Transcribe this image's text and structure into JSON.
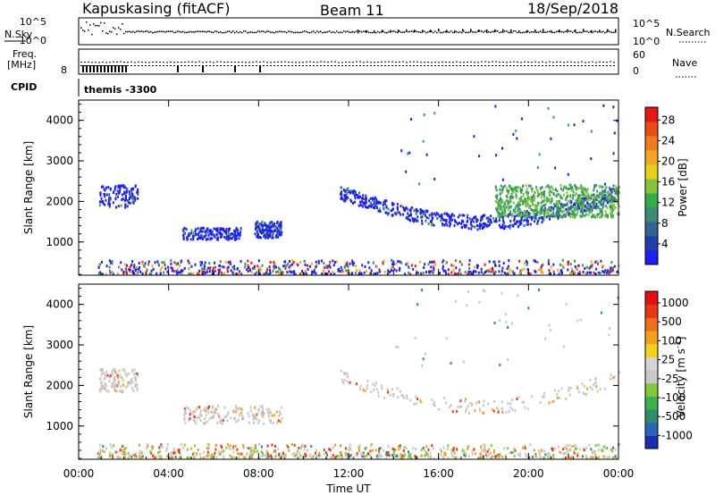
{
  "header": {
    "station": "Kapuskasing (fitACF)",
    "beam": "Beam 11",
    "date": "18/Sep/2018"
  },
  "top_panels": {
    "nsky_label": "N.Sky",
    "nsearch_label": "N.Search",
    "noise_ticks_left": [
      "10^5",
      "10^0"
    ],
    "noise_ticks_right": [
      "10^5",
      "10^0"
    ],
    "freq_label_1": "Freq.",
    "freq_label_2": "[MHz]",
    "freq_ticks_left": [
      "8"
    ],
    "nave_label": "Nave",
    "nave_ticks_right": [
      "60",
      "0"
    ],
    "cpid_label": "CPID",
    "cpid_text": "themis -3300"
  },
  "chart_data": [
    {
      "type": "heatmap",
      "name": "power-panel",
      "ylabel": "Slant Range [km]",
      "x_ticks": [
        "00:00",
        "04:00",
        "08:00",
        "12:00",
        "16:00",
        "20:00",
        "00:00"
      ],
      "xlim_hours": [
        0,
        24
      ],
      "ylim_km": [
        180,
        4500
      ],
      "y_ticks": [
        1000,
        2000,
        3000,
        4000
      ],
      "colorbar": {
        "label": "Power [dB]",
        "ticks": [
          "4",
          "8",
          "12",
          "16",
          "20",
          "24",
          "28"
        ],
        "colors": [
          "#1f1ff0",
          "#1f3fa8",
          "#33638f",
          "#3b8a78",
          "#2fae4a",
          "#86c23a",
          "#e6d319",
          "#f2a623",
          "#f07c1e",
          "#ea4c16",
          "#e41a12"
        ]
      },
      "echo_regions": [
        {
          "t_start": 0.9,
          "t_end": 2.6,
          "r_start": 1850,
          "r_end": 2400,
          "level": "low"
        },
        {
          "t_start": 4.6,
          "t_end": 7.2,
          "r_start": 1050,
          "r_end": 1350,
          "level": "low"
        },
        {
          "t_start": 7.8,
          "t_end": 9.0,
          "r_start": 1100,
          "r_end": 1500,
          "level": "low"
        },
        {
          "t_start": 11.6,
          "t_end": 24.0,
          "r_start": 1200,
          "r_end": 2400,
          "level": "mixed"
        },
        {
          "t_start": 18.5,
          "t_end": 24.0,
          "r_start": 1600,
          "r_end": 2400,
          "level": "mid"
        },
        {
          "t_start": 0.8,
          "t_end": 24.0,
          "r_start": 180,
          "r_end": 550,
          "level": "ground"
        }
      ]
    },
    {
      "type": "heatmap",
      "name": "velocity-panel",
      "ylabel": "Slant Range [km]",
      "xlabel": "Time UT",
      "x_ticks": [
        "00:00",
        "04:00",
        "08:00",
        "12:00",
        "16:00",
        "20:00",
        "00:00"
      ],
      "xlim_hours": [
        0,
        24
      ],
      "ylim_km": [
        180,
        4500
      ],
      "y_ticks": [
        1000,
        2000,
        3000,
        4000
      ],
      "colorbar": {
        "label": "Velocity [m s",
        "label_sup": "-1",
        "label_end": "]",
        "ticks": [
          "1000",
          "500",
          "100",
          "25",
          "-25",
          "-100",
          "-500",
          "-1000"
        ],
        "colors": [
          "#1c2bb3",
          "#2a66b8",
          "#2f8c6f",
          "#39b34a",
          "#7fc93a",
          "#c8c8c8",
          "#d4d4d4",
          "#f4d11c",
          "#f2a21f",
          "#ef6f1c",
          "#ea3618",
          "#e30f10"
        ]
      },
      "echo_regions": [
        {
          "t_start": 0.9,
          "t_end": 2.6,
          "r_start": 1850,
          "r_end": 2400,
          "level": "gray"
        },
        {
          "t_start": 4.6,
          "t_end": 9.0,
          "r_start": 1050,
          "r_end": 1500,
          "level": "gray"
        },
        {
          "t_start": 11.6,
          "t_end": 24.0,
          "r_start": 1200,
          "r_end": 2400,
          "level": "gray"
        },
        {
          "t_start": 0.8,
          "t_end": 24.0,
          "r_start": 180,
          "r_end": 550,
          "level": "ground"
        }
      ]
    }
  ]
}
